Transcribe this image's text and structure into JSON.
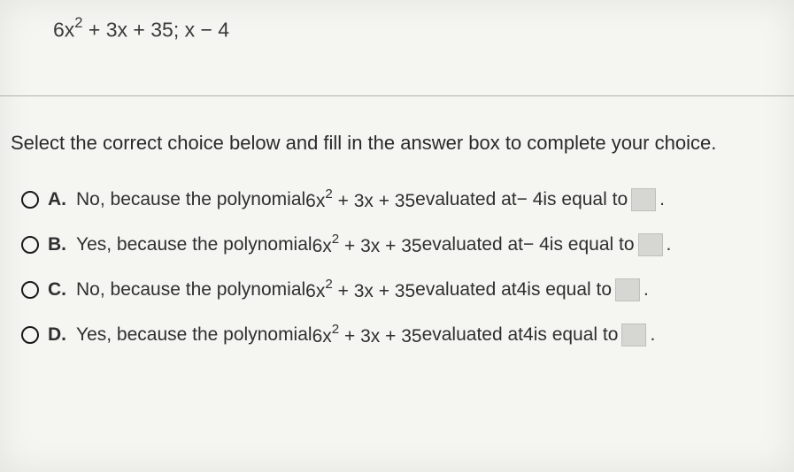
{
  "expression": {
    "polynomial": {
      "coef1": "6x",
      "exp": "2",
      "rest": " + 3x + 35"
    },
    "divider": "; x − 4"
  },
  "instruction": "Select the correct choice below and fill in the answer box to complete your choice.",
  "choices": [
    {
      "letter": "A.",
      "prefix": "No, because the polynomial ",
      "poly_coef": "6x",
      "poly_exp": "2",
      "poly_rest": " + 3x + 35",
      "mid": " evaluated at ",
      "at": "− 4",
      "suffix": " is equal to ",
      "period": "."
    },
    {
      "letter": "B.",
      "prefix": "Yes, because the polynomial ",
      "poly_coef": "6x",
      "poly_exp": "2",
      "poly_rest": " + 3x + 35",
      "mid": " evaluated at ",
      "at": "− 4",
      "suffix": " is equal to ",
      "period": "."
    },
    {
      "letter": "C.",
      "prefix": "No, because the polynomial ",
      "poly_coef": "6x",
      "poly_exp": "2",
      "poly_rest": " + 3x + 35",
      "mid": " evaluated at ",
      "at": "4",
      "suffix": " is equal to ",
      "period": "."
    },
    {
      "letter": "D.",
      "prefix": "Yes, because the polynomial ",
      "poly_coef": "6x",
      "poly_exp": "2",
      "poly_rest": " + 3x + 35",
      "mid": " evaluated at ",
      "at": "4",
      "suffix": " is equal to ",
      "period": "."
    }
  ],
  "colors": {
    "background": "#f5f5f2",
    "text": "#2a2a2a",
    "divider": "#b0b0ac",
    "blank_bg": "#d6d6d2",
    "blank_border": "#bfbfbb"
  },
  "typography": {
    "font_family": "Arial",
    "expr_fontsize": 23,
    "instruction_fontsize": 22,
    "choice_fontsize": 21
  }
}
